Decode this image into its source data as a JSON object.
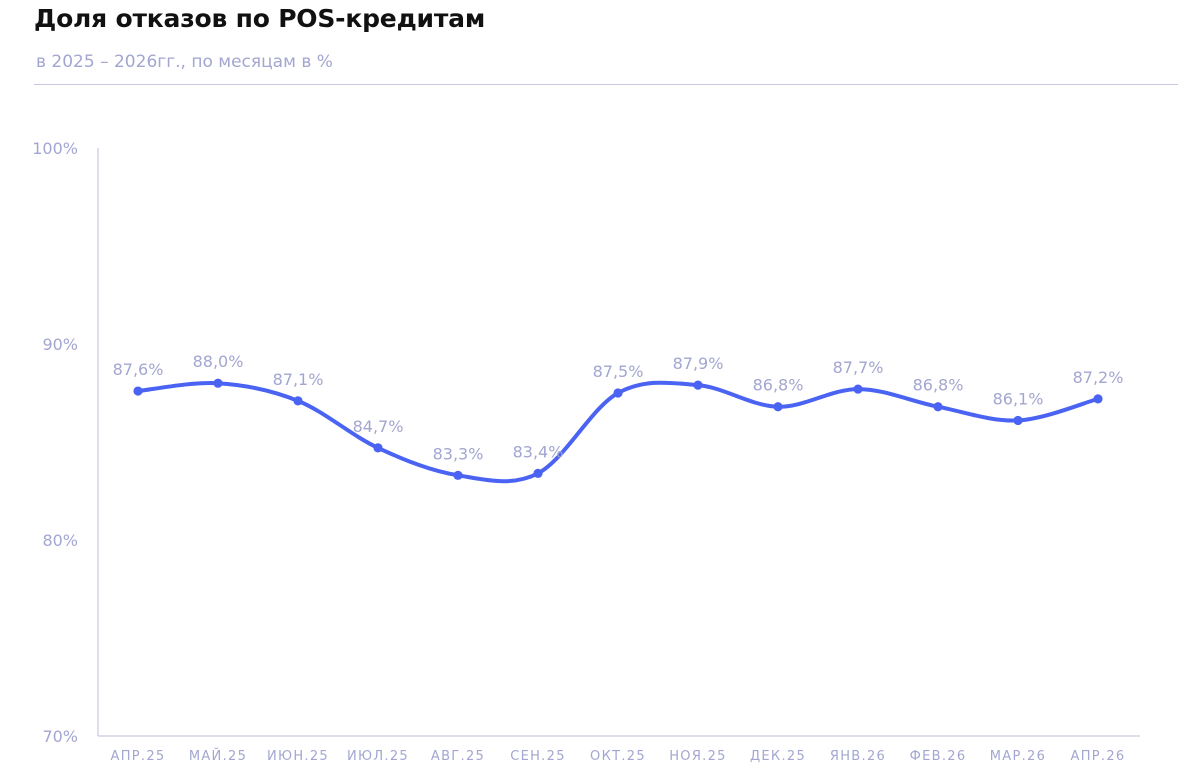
{
  "title": "Доля отказов по POS-кредитам",
  "subtitle": "в 2025 – 2026гг., по месяцам в %",
  "colors": {
    "line": "#4a63f2",
    "text_muted": "#a3a6d0",
    "axis": "#c7c9e4",
    "title": "#111111"
  },
  "chart_data": {
    "type": "line",
    "title": "Доля отказов по POS-кредитам",
    "subtitle": "в 2025 – 2026гг., по месяцам в %",
    "xlabel": "",
    "ylabel": "",
    "categories": [
      "АПР.25",
      "МАЙ.25",
      "ИЮН.25",
      "ИЮЛ.25",
      "АВГ.25",
      "СЕН.25",
      "ОКТ.25",
      "НОЯ.25",
      "ДЕК.25",
      "ЯНВ.26",
      "ФЕВ.26",
      "МАР.26",
      "АПР.26"
    ],
    "series": [
      {
        "values": [
          87.6,
          88.0,
          87.1,
          84.7,
          83.3,
          83.4,
          87.5,
          87.9,
          86.8,
          87.7,
          86.8,
          86.1,
          87.2
        ],
        "labels": [
          "87,6%",
          "88,0%",
          "87,1%",
          "84,7%",
          "83,3%",
          "83,4%",
          "87,5%",
          "87,9%",
          "86,8%",
          "87,7%",
          "86,8%",
          "86,1%",
          "87,2%"
        ]
      }
    ],
    "ylim": [
      70,
      100
    ],
    "yticks": [
      100,
      90,
      80,
      70
    ],
    "ytick_labels": [
      "100%",
      "90%",
      "80%",
      "70%"
    ],
    "grid": false,
    "smooth": true,
    "markers": true
  }
}
